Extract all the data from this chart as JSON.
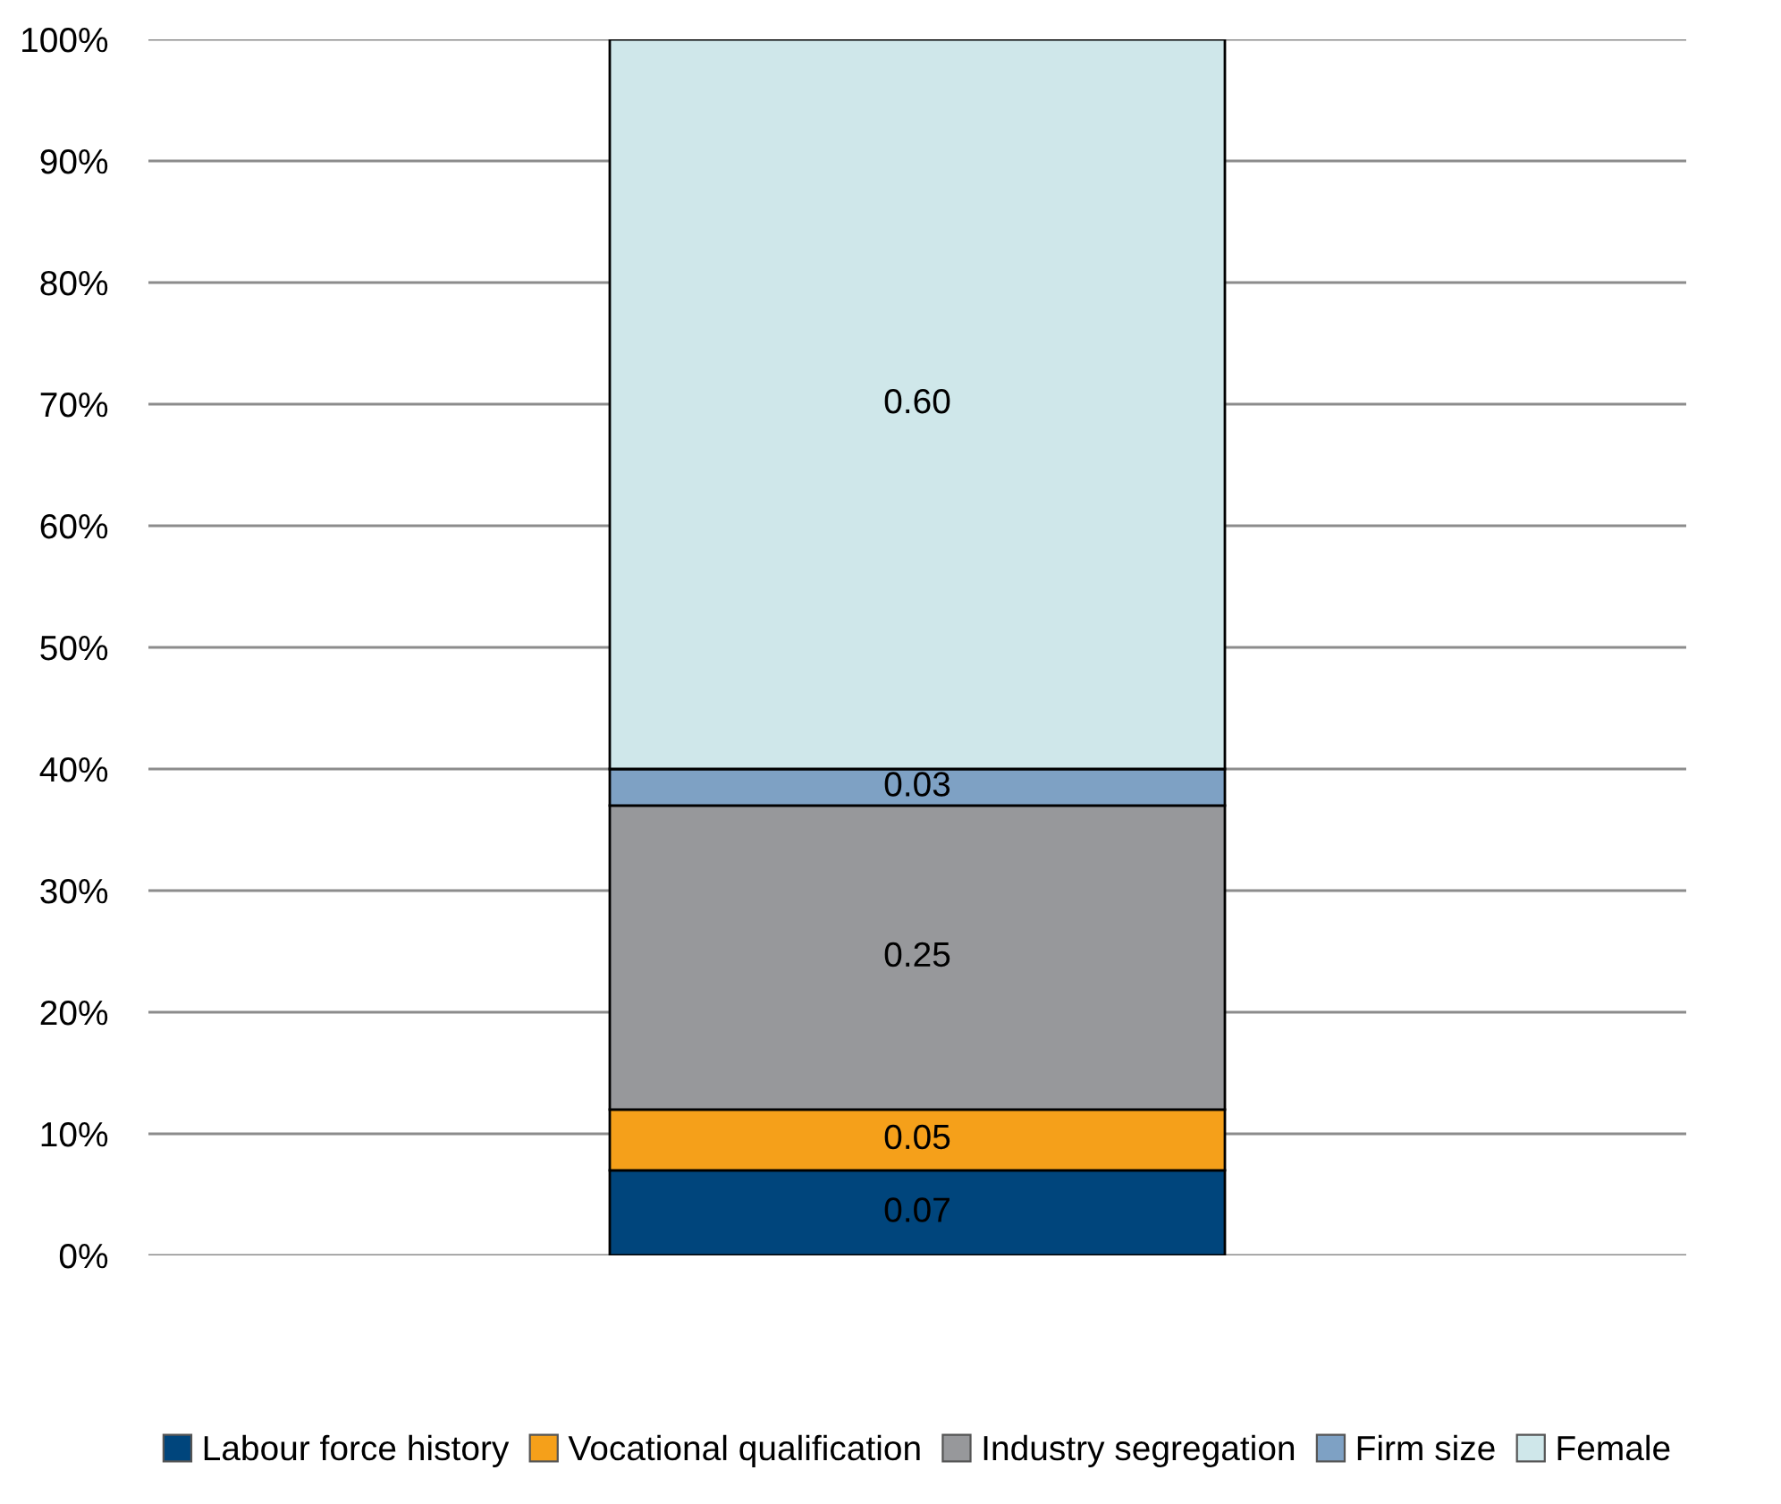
{
  "chart_data": {
    "type": "bar",
    "stacked": true,
    "categories": [
      null
    ],
    "series": [
      {
        "name": "Labour force history",
        "color": "#00457c",
        "values": [
          0.07
        ],
        "value_labels": [
          "0.07"
        ]
      },
      {
        "name": "Vocational qualification",
        "color": "#f5a01a",
        "values": [
          0.05
        ],
        "value_labels": [
          "0.05"
        ]
      },
      {
        "name": "Industry segregation",
        "color": "#97989b",
        "values": [
          0.25
        ],
        "value_labels": [
          "0.25"
        ]
      },
      {
        "name": "Firm size",
        "color": "#7ea1c4",
        "values": [
          0.03
        ],
        "value_labels": [
          "0.03"
        ]
      },
      {
        "name": "Female",
        "color": "#cfe7ea",
        "values": [
          0.6
        ],
        "value_labels": [
          "0.60"
        ]
      }
    ],
    "ylim": [
      0,
      1
    ],
    "yticks": [
      {
        "value": 0,
        "label": "0%"
      },
      {
        "value": 0.1,
        "label": "10%"
      },
      {
        "value": 0.2,
        "label": "20%"
      },
      {
        "value": 0.3,
        "label": "30%"
      },
      {
        "value": 0.4,
        "label": "40%"
      },
      {
        "value": 0.5,
        "label": "50%"
      },
      {
        "value": 0.6,
        "label": "60%"
      },
      {
        "value": 0.7,
        "label": "70%"
      },
      {
        "value": 0.8,
        "label": "80%"
      },
      {
        "value": 0.9,
        "label": "90%"
      },
      {
        "value": 1,
        "label": "100%"
      }
    ],
    "grid": "y",
    "legend": "bottom",
    "tick_labels": "y"
  }
}
